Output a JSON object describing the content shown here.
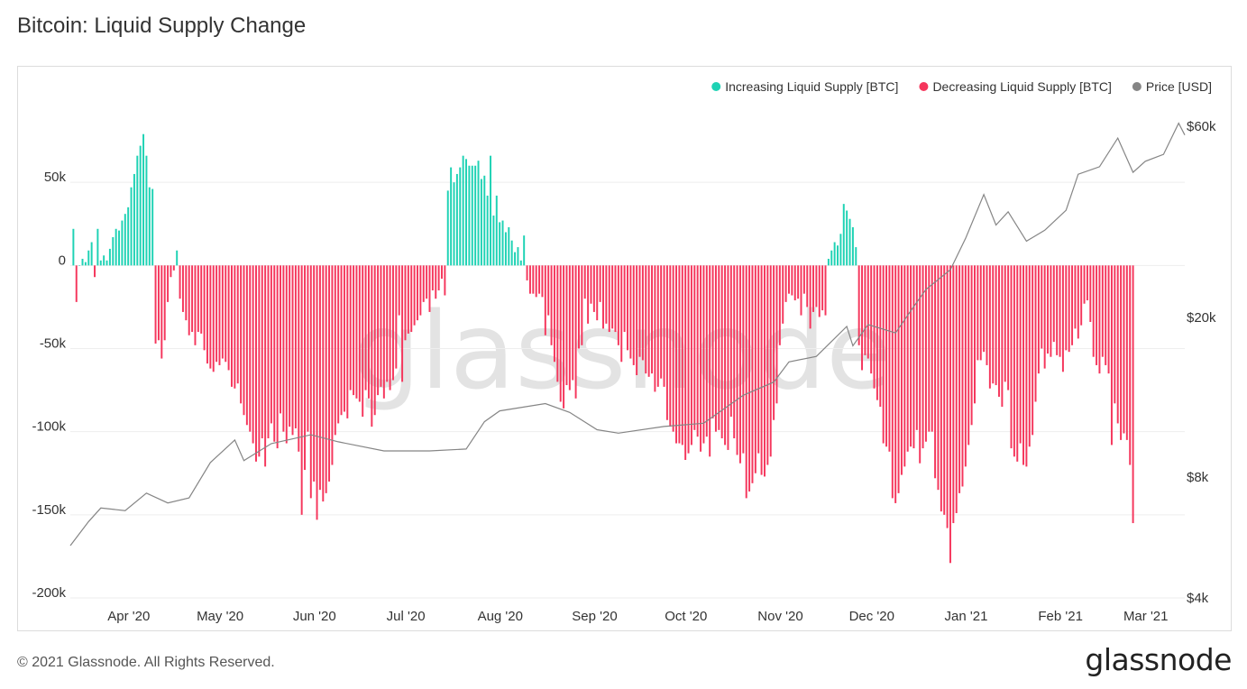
{
  "title": "Bitcoin: Liquid Supply Change",
  "footer": {
    "copyright": "© 2021 Glassnode. All Rights Reserved.",
    "logo": "glassnode"
  },
  "watermark": "glassnode",
  "colors": {
    "increasing": "#1ed2b4",
    "decreasing": "#f5365c",
    "price": "#858585",
    "grid": "#eeeeee"
  },
  "chart_data": {
    "type": "bar",
    "legend": [
      {
        "label": "Increasing Liquid Supply [BTC]",
        "color": "#1ed2b4",
        "marker": "dot"
      },
      {
        "label": "Decreasing Liquid Supply [BTC]",
        "color": "#f5365c",
        "marker": "dot"
      },
      {
        "label": "Price [USD]",
        "color": "#858585",
        "marker": "dot"
      }
    ],
    "legend_position": "top-right",
    "x_range": [
      "2020-03-14",
      "2021-03-15"
    ],
    "x_ticks": [
      {
        "label": "Apr '20",
        "date": "2020-04-01"
      },
      {
        "label": "May '20",
        "date": "2020-05-01"
      },
      {
        "label": "Jun '20",
        "date": "2020-06-01"
      },
      {
        "label": "Jul '20",
        "date": "2020-07-01"
      },
      {
        "label": "Aug '20",
        "date": "2020-08-01"
      },
      {
        "label": "Sep '20",
        "date": "2020-09-01"
      },
      {
        "label": "Oct '20",
        "date": "2020-10-01"
      },
      {
        "label": "Nov '20",
        "date": "2020-11-01"
      },
      {
        "label": "Dec '20",
        "date": "2020-12-01"
      },
      {
        "label": "Jan '21",
        "date": "2021-01-01"
      },
      {
        "label": "Feb '21",
        "date": "2021-02-01"
      },
      {
        "label": "Mar '21",
        "date": "2021-03-01"
      }
    ],
    "y_left": {
      "ylim": [
        -200000,
        100000
      ],
      "ticks": [
        {
          "label": "50k",
          "value": 50000
        },
        {
          "label": "0",
          "value": 0
        },
        {
          "label": "-50k",
          "value": -50000
        },
        {
          "label": "-100k",
          "value": -100000
        },
        {
          "label": "-150k",
          "value": -150000
        },
        {
          "label": "-200k",
          "value": -200000
        }
      ]
    },
    "y_right": {
      "scale": "log",
      "ylim": [
        4000,
        70000
      ],
      "ticks": [
        {
          "label": "$60k",
          "value": 60000
        },
        {
          "label": "$20k",
          "value": 20000
        },
        {
          "label": "$8k",
          "value": 8000
        },
        {
          "label": "$4k",
          "value": 4000
        }
      ]
    },
    "series": [
      {
        "name": "Liquid Supply Change [BTC]",
        "start_date": "2020-03-15",
        "step_days": 1,
        "values": [
          22000,
          -22000,
          0,
          4000,
          2000,
          9000,
          14000,
          -7000,
          22000,
          3000,
          6000,
          3000,
          10000,
          17000,
          22000,
          21000,
          27000,
          31000,
          35000,
          47000,
          55000,
          66000,
          72000,
          79000,
          66000,
          47000,
          46000,
          -47000,
          -45000,
          -56000,
          -45000,
          -22000,
          -7000,
          -3000,
          9000,
          -20000,
          -28000,
          -33000,
          -42000,
          -40000,
          -48000,
          -40000,
          -41000,
          -51000,
          -59000,
          -62000,
          -64000,
          -58000,
          -60000,
          -56000,
          -58000,
          -63000,
          -73000,
          -74000,
          -71000,
          -83000,
          -90000,
          -96000,
          -100000,
          -107000,
          -118000,
          -115000,
          -104000,
          -121000,
          -104000,
          -95000,
          -106000,
          -110000,
          -89000,
          -100000,
          -107000,
          -97000,
          -102000,
          -98000,
          -112000,
          -150000,
          -123000,
          -100000,
          -140000,
          -130000,
          -153000,
          -135000,
          -142000,
          -137000,
          -130000,
          -120000,
          -102000,
          -95000,
          -90000,
          -88000,
          -92000,
          -75000,
          -78000,
          -80000,
          -82000,
          -91000,
          -75000,
          -80000,
          -97000,
          -90000,
          -78000,
          -73000,
          -80000,
          -70000,
          -75000,
          -69000,
          -62000,
          -30000,
          -70000,
          -45000,
          -41000,
          -40000,
          -36000,
          -33000,
          -30000,
          -22000,
          -20000,
          -28000,
          -15000,
          -20000,
          -15000,
          -8000,
          -18000,
          45000,
          59000,
          50000,
          55000,
          59000,
          66000,
          64000,
          60000,
          60000,
          60000,
          63000,
          52000,
          54000,
          42000,
          66000,
          30000,
          42000,
          26000,
          27000,
          20000,
          23000,
          15000,
          8000,
          11000,
          3000,
          18000,
          -9000,
          -17000,
          -17000,
          -19000,
          -17000,
          -19000,
          -42000,
          -30000,
          -48000,
          -58000,
          -70000,
          -82000,
          -86000,
          -72000,
          -75000,
          -69000,
          -80000,
          -50000,
          -48000,
          -20000,
          -35000,
          -23000,
          -28000,
          -33000,
          -22000,
          -38000,
          -35000,
          -40000,
          -38000,
          -40000,
          -48000,
          -58000,
          -40000,
          -51000,
          -56000,
          -60000,
          -66000,
          -55000,
          -57000,
          -65000,
          -67000,
          -65000,
          -76000,
          -73000,
          -68000,
          -73000,
          -93000,
          -97000,
          -100000,
          -107000,
          -107000,
          -108000,
          -117000,
          -113000,
          -108000,
          -99000,
          -103000,
          -112000,
          -107000,
          -103000,
          -115000,
          -92000,
          -100000,
          -99000,
          -104000,
          -108000,
          -111000,
          -91000,
          -104000,
          -114000,
          -119000,
          -113000,
          -140000,
          -136000,
          -131000,
          -125000,
          -113000,
          -126000,
          -127000,
          -120000,
          -115000,
          -93000,
          -83000,
          -48000,
          -35000,
          -22000,
          -17000,
          -18000,
          -21000,
          -20000,
          -30000,
          -17000,
          -25000,
          -38000,
          -28000,
          -25000,
          -31000,
          -27000,
          -30000,
          4000,
          9000,
          14000,
          12000,
          19000,
          37000,
          33000,
          28000,
          23000,
          11000,
          -48000,
          -63000,
          -54000,
          -56000,
          -65000,
          -74000,
          -81000,
          -85000,
          -107000,
          -109000,
          -112000,
          -140000,
          -143000,
          -137000,
          -126000,
          -121000,
          -112000,
          -109000,
          -110000,
          -99000,
          -119000,
          -110000,
          -106000,
          -100000,
          -100000,
          -128000,
          -135000,
          -148000,
          -150000,
          -158000,
          -179000,
          -155000,
          -149000,
          -137000,
          -133000,
          -121000,
          -108000,
          -96000,
          -83000,
          -57000,
          -57000,
          -52000,
          -60000,
          -74000,
          -71000,
          -72000,
          -79000,
          -85000,
          -70000,
          -75000,
          -110000,
          -115000,
          -118000,
          -107000,
          -120000,
          -121000,
          -109000,
          -102000,
          -82000,
          -65000,
          -50000,
          -62000,
          -53000,
          -55000,
          -46000,
          -54000,
          -55000,
          -64000,
          -51000,
          -52000,
          -48000,
          -38000,
          -44000,
          -36000,
          -23000,
          -21000,
          -34000,
          -55000,
          -60000,
          -65000,
          -55000,
          -60000,
          -65000,
          -108000,
          -83000,
          -95000,
          -105000,
          -101000,
          -105000,
          -120000,
          -155000
        ]
      },
      {
        "name": "Price [USD]",
        "dates": [
          "2020-03-14",
          "2020-03-20",
          "2020-03-24",
          "2020-04-01",
          "2020-04-08",
          "2020-04-15",
          "2020-04-22",
          "2020-04-29",
          "2020-05-07",
          "2020-05-10",
          "2020-05-19",
          "2020-06-01",
          "2020-06-10",
          "2020-06-25",
          "2020-07-10",
          "2020-07-22",
          "2020-07-28",
          "2020-08-02",
          "2020-08-17",
          "2020-08-25",
          "2020-09-03",
          "2020-09-10",
          "2020-09-25",
          "2020-10-08",
          "2020-10-21",
          "2020-10-31",
          "2020-11-05",
          "2020-11-14",
          "2020-11-24",
          "2020-11-26",
          "2020-12-01",
          "2020-12-10",
          "2020-12-16",
          "2020-12-20",
          "2020-12-28",
          "2021-01-02",
          "2021-01-08",
          "2021-01-12",
          "2021-01-16",
          "2021-01-22",
          "2021-01-28",
          "2021-02-04",
          "2021-02-08",
          "2021-02-15",
          "2021-02-21",
          "2021-02-26",
          "2021-03-02",
          "2021-03-08",
          "2021-03-13",
          "2021-03-15"
        ],
        "values": [
          5400,
          6200,
          6700,
          6600,
          7300,
          6900,
          7100,
          8700,
          9900,
          8800,
          9700,
          10200,
          9800,
          9300,
          9300,
          9400,
          11000,
          11700,
          12200,
          11600,
          10500,
          10300,
          10700,
          10900,
          12800,
          13800,
          15500,
          16000,
          19000,
          17000,
          19200,
          18300,
          21300,
          23500,
          26300,
          31500,
          40500,
          34000,
          36700,
          31000,
          33000,
          37000,
          45500,
          47500,
          56000,
          46000,
          49000,
          51000,
          61000,
          57000
        ]
      }
    ]
  }
}
